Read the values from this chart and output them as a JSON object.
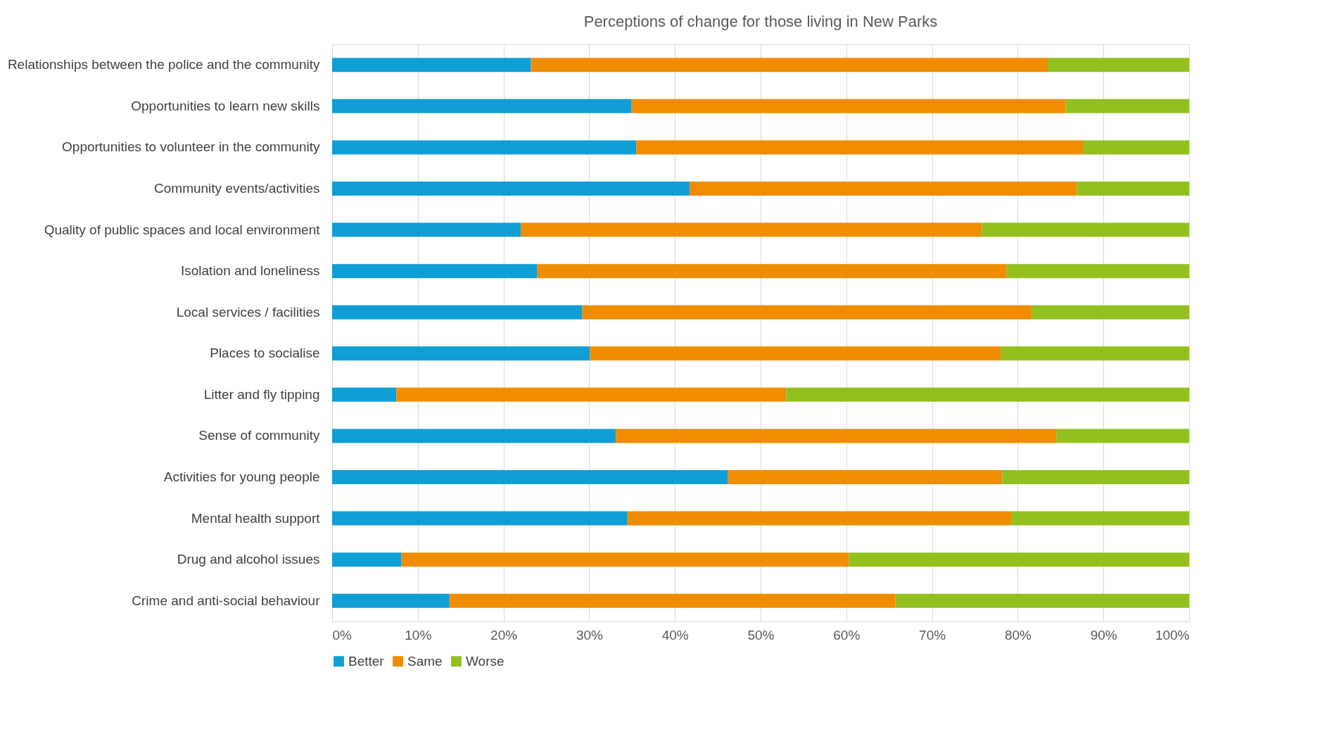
{
  "chart_data": {
    "type": "bar",
    "orientation": "horizontal",
    "stacked": true,
    "title": "Perceptions of change for those living in New Parks",
    "categories": [
      "Relationships between the police and the community",
      "Opportunities to learn new skills",
      "Opportunities to volunteer in the community",
      "Community events/activities",
      "Quality of public spaces and local environment",
      "Isolation and loneliness",
      "Local services / facilities",
      "Places to socialise",
      "Litter and fly tipping",
      "Sense of community",
      "Activities for young people",
      "Mental health support",
      "Drug and alcohol issues",
      "Crime and anti-social behaviour"
    ],
    "series": [
      {
        "name": "Better",
        "color": "#0f9ed5",
        "values": [
          23.2,
          34.9,
          35.5,
          41.7,
          22.0,
          23.9,
          29.2,
          30.1,
          7.5,
          33.1,
          46.2,
          34.4,
          8.1,
          13.7
        ]
      },
      {
        "name": "Same",
        "color": "#f08c00",
        "values": [
          60.3,
          50.7,
          52.1,
          45.2,
          53.8,
          54.8,
          52.4,
          47.9,
          45.5,
          51.4,
          32.0,
          44.9,
          52.2,
          52.0
        ]
      },
      {
        "name": "Worse",
        "color": "#92c01f",
        "values": [
          16.5,
          14.4,
          12.4,
          13.1,
          24.2,
          21.3,
          18.4,
          22.0,
          47.0,
          15.5,
          21.8,
          20.7,
          39.7,
          34.3
        ]
      }
    ],
    "xlim": [
      0,
      100
    ],
    "xticks": [
      {
        "value": 0,
        "label": "0%"
      },
      {
        "value": 10,
        "label": "10%"
      },
      {
        "value": 20,
        "label": "20%"
      },
      {
        "value": 30,
        "label": "30%"
      },
      {
        "value": 40,
        "label": "40%"
      },
      {
        "value": 50,
        "label": "50%"
      },
      {
        "value": 60,
        "label": "60%"
      },
      {
        "value": 70,
        "label": "70%"
      },
      {
        "value": 80,
        "label": "80%"
      },
      {
        "value": 90,
        "label": "90%"
      },
      {
        "value": 100,
        "label": "100%"
      }
    ],
    "grid": "x",
    "legend": "bottom"
  }
}
